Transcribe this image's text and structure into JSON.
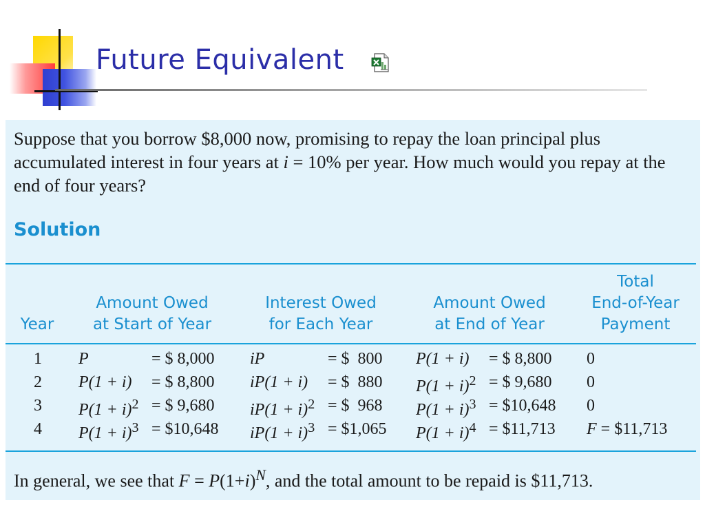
{
  "header": {
    "title": "Future Equivalent",
    "icon": "excel-file-icon"
  },
  "problem": {
    "text": "Suppose that you borrow $8,000 now, promising to repay the loan principal plus accumulated interest in four years at i = 10% per year. How much would you repay at the end of four years?"
  },
  "solution_label": "Solution",
  "table": {
    "headers": {
      "year": "Year",
      "start_1": "Amount Owed",
      "start_2": "at Start of Year",
      "interest_1": "Interest Owed",
      "interest_2": "for Each Year",
      "end_1": "Amount Owed",
      "end_2": "at End of Year",
      "payment_1": "Total",
      "payment_2": "End-of-Year",
      "payment_3": "Payment"
    },
    "rows": [
      {
        "year": "1",
        "start_expr": "P",
        "start_val": "= $ 8,000",
        "int_expr": "iP",
        "int_val": "= $  800",
        "end_expr": "P(1 + i)",
        "end_val": "= $ 8,800",
        "payment": "0"
      },
      {
        "year": "2",
        "start_expr": "P(1 + i)",
        "start_val": "= $ 8,800",
        "int_expr": "iP(1 + i)",
        "int_val": "= $  880",
        "end_expr": "P(1 + i)2",
        "end_val": "= $ 9,680",
        "payment": "0"
      },
      {
        "year": "3",
        "start_expr": "P(1 + i)2",
        "start_val": "= $ 9,680",
        "int_expr": "iP(1 + i)2",
        "int_val": "= $  968",
        "end_expr": "P(1 + i)3",
        "end_val": "= $10,648",
        "payment": "0"
      },
      {
        "year": "4",
        "start_expr": "P(1 + i)3",
        "start_val": "= $10,648",
        "int_expr": "iP(1 + i)3",
        "int_val": "= $1,065",
        "end_expr": "P(1 + i)4",
        "end_val": "= $11,713",
        "payment": "F = $11,713"
      }
    ]
  },
  "general": "In general, we see that F = P(1+i)N, and the total amount to be repaid is $11,713.",
  "colors": {
    "title": "#2b2ea8",
    "accent": "#1a8fcf",
    "panel": "#e3f3fb"
  }
}
